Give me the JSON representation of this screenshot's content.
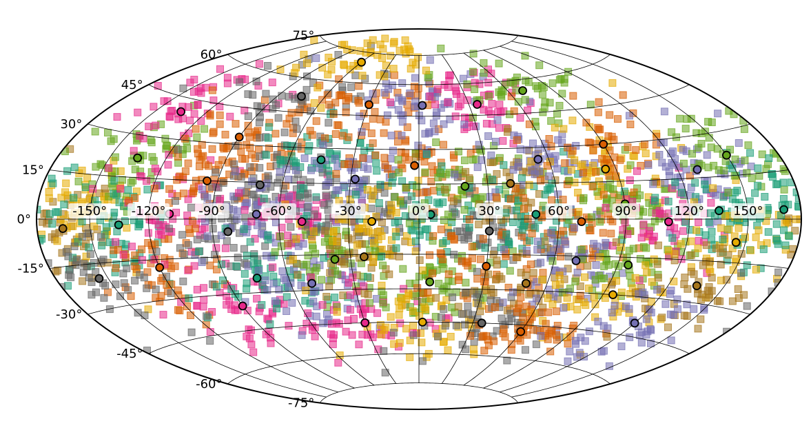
{
  "chart_data": {
    "type": "scatter",
    "projection": "hammer",
    "grid": true,
    "legend": "none",
    "title": "",
    "xlabel": "",
    "ylabel": "",
    "xlim": [
      -180,
      180
    ],
    "ylim": [
      -90,
      90
    ],
    "lon_ticks": [
      "-150°",
      "-120°",
      "-90°",
      "-60°",
      "-30°",
      "0°",
      "30°",
      "60°",
      "90°",
      "120°",
      "150°"
    ],
    "lat_ticks": [
      "-75°",
      "-60°",
      "-45°",
      "-30°",
      "-15°",
      "0°",
      "15°",
      "30°",
      "45°",
      "60°",
      "75°"
    ],
    "palette": [
      "#1b9e77",
      "#d95f02",
      "#7570b3",
      "#e7298a",
      "#66a61e",
      "#e6ab02",
      "#a6761d",
      "#666666"
    ],
    "centers": [
      {
        "lon": -165,
        "lat": -3,
        "color": "#a6761d"
      },
      {
        "lon": -150,
        "lat": 4,
        "color": "#e6ab02"
      },
      {
        "lon": -135,
        "lat": 22,
        "color": "#66a61e"
      },
      {
        "lon": -135,
        "lat": -2,
        "color": "#1b9e77"
      },
      {
        "lon": -135,
        "lat": 40,
        "color": "#e7298a"
      },
      {
        "lon": -120,
        "lat": -18,
        "color": "#d95f02"
      },
      {
        "lon": -110,
        "lat": 2,
        "color": "#e7298a"
      },
      {
        "lon": -95,
        "lat": 15,
        "color": "#d95f02"
      },
      {
        "lon": -90,
        "lat": 33,
        "color": "#d95f02"
      },
      {
        "lon": -90,
        "lat": -35,
        "color": "#e7298a"
      },
      {
        "lon": -83,
        "lat": -5,
        "color": "#666666"
      },
      {
        "lon": -75,
        "lat": 52,
        "color": "#666666"
      },
      {
        "lon": -70,
        "lat": 14,
        "color": "#666666"
      },
      {
        "lon": -70,
        "lat": 2,
        "color": "#7570b3"
      },
      {
        "lon": -75,
        "lat": -24,
        "color": "#1b9e77"
      },
      {
        "lon": -50,
        "lat": -1,
        "color": "#e7298a"
      },
      {
        "lon": -50,
        "lat": -27,
        "color": "#7570b3"
      },
      {
        "lon": -45,
        "lat": 25,
        "color": "#1b9e77"
      },
      {
        "lon": -37,
        "lat": -17,
        "color": "#66a61e"
      },
      {
        "lon": -30,
        "lat": 5,
        "color": "#666666"
      },
      {
        "lon": -30,
        "lat": 50,
        "color": "#d95f02"
      },
      {
        "lon": -28,
        "lat": 17,
        "color": "#7570b3"
      },
      {
        "lon": -24,
        "lat": -16,
        "color": "#a6761d"
      },
      {
        "lon": -20,
        "lat": -1,
        "color": "#e6ab02"
      },
      {
        "lon": -30,
        "lat": -45,
        "color": "#e7298a"
      },
      {
        "lon": -2,
        "lat": 23,
        "color": "#d95f02"
      },
      {
        "lon": 2,
        "lat": 50,
        "color": "#7570b3"
      },
      {
        "lon": 5,
        "lat": 2,
        "color": "#1b9e77"
      },
      {
        "lon": 5,
        "lat": -27,
        "color": "#66a61e"
      },
      {
        "lon": 2,
        "lat": -45,
        "color": "#e6ab02"
      },
      {
        "lon": 20,
        "lat": 14,
        "color": "#66a61e"
      },
      {
        "lon": 30,
        "lat": -5,
        "color": "#666666"
      },
      {
        "lon": 30,
        "lat": -20,
        "color": "#d95f02"
      },
      {
        "lon": 35,
        "lat": 50,
        "color": "#e7298a"
      },
      {
        "lon": 40,
        "lat": 15,
        "color": "#a6761d"
      },
      {
        "lon": 50,
        "lat": 2,
        "color": "#1b9e77"
      },
      {
        "lon": 50,
        "lat": -27,
        "color": "#a6761d"
      },
      {
        "lon": 55,
        "lat": 25,
        "color": "#7570b3"
      },
      {
        "lon": 35,
        "lat": -45,
        "color": "#666666"
      },
      {
        "lon": 70,
        "lat": -1,
        "color": "#d95f02"
      },
      {
        "lon": 70,
        "lat": 55,
        "color": "#66a61e"
      },
      {
        "lon": 70,
        "lat": -17,
        "color": "#7570b3"
      },
      {
        "lon": 85,
        "lat": 20,
        "color": "#e6ab02"
      },
      {
        "lon": 90,
        "lat": 6,
        "color": "#66a61e"
      },
      {
        "lon": 90,
        "lat": 30,
        "color": "#d95f02"
      },
      {
        "lon": 95,
        "lat": -18,
        "color": "#66a61e"
      },
      {
        "lon": 110,
        "lat": -1,
        "color": "#e7298a"
      },
      {
        "lon": 95,
        "lat": -30,
        "color": "#e6ab02"
      },
      {
        "lon": 60,
        "lat": -48,
        "color": "#d95f02"
      },
      {
        "lon": 130,
        "lat": 18,
        "color": "#7570b3"
      },
      {
        "lon": 135,
        "lat": 3,
        "color": "#1b9e77"
      },
      {
        "lon": 145,
        "lat": -8,
        "color": "#e6ab02"
      },
      {
        "lon": 135,
        "lat": -24,
        "color": "#a6761d"
      },
      {
        "lon": 150,
        "lat": 22,
        "color": "#66a61e"
      },
      {
        "lon": 170,
        "lat": 3,
        "color": "#1b9e77"
      },
      {
        "lon": 120,
        "lat": -40,
        "color": "#7570b3"
      },
      {
        "lon": -155,
        "lat": -20,
        "color": "#666666"
      },
      {
        "lon": -60,
        "lat": 70,
        "color": "#e6ab02"
      }
    ]
  }
}
